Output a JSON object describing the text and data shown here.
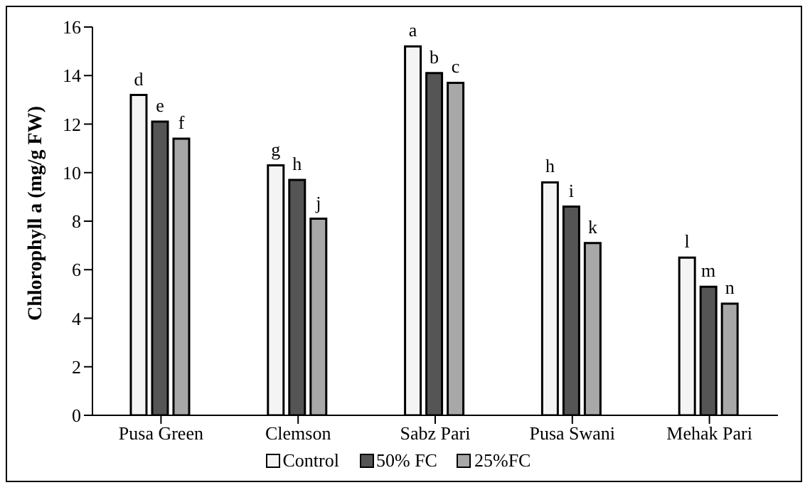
{
  "chart_data": {
    "type": "bar",
    "ylabel": "Chlorophyll a (mg/g FW)",
    "categories": [
      "Pusa Green",
      "Clemson",
      "Sabz Pari",
      "Pusa Swani",
      "Mehak Pari"
    ],
    "series": [
      {
        "name": "Control",
        "color": "#f4f4f4",
        "values": [
          13.2,
          10.3,
          15.2,
          9.6,
          6.5
        ],
        "value_labels": [
          "d",
          "g",
          "a",
          "h",
          "l"
        ]
      },
      {
        "name": "50% FC",
        "color": "#555555",
        "values": [
          12.1,
          9.7,
          14.1,
          8.6,
          5.3
        ],
        "value_labels": [
          "e",
          "h",
          "b",
          "i",
          "m"
        ]
      },
      {
        "name": "25%FC",
        "color": "#a8a8a8",
        "values": [
          11.4,
          8.1,
          13.7,
          7.1,
          4.6
        ],
        "value_labels": [
          "f",
          "j",
          "c",
          "k",
          "n"
        ]
      }
    ],
    "ylim": [
      0,
      16
    ],
    "yticks": [
      0,
      2,
      4,
      6,
      8,
      10,
      12,
      14,
      16
    ],
    "grid": false,
    "legend": "bottom"
  }
}
